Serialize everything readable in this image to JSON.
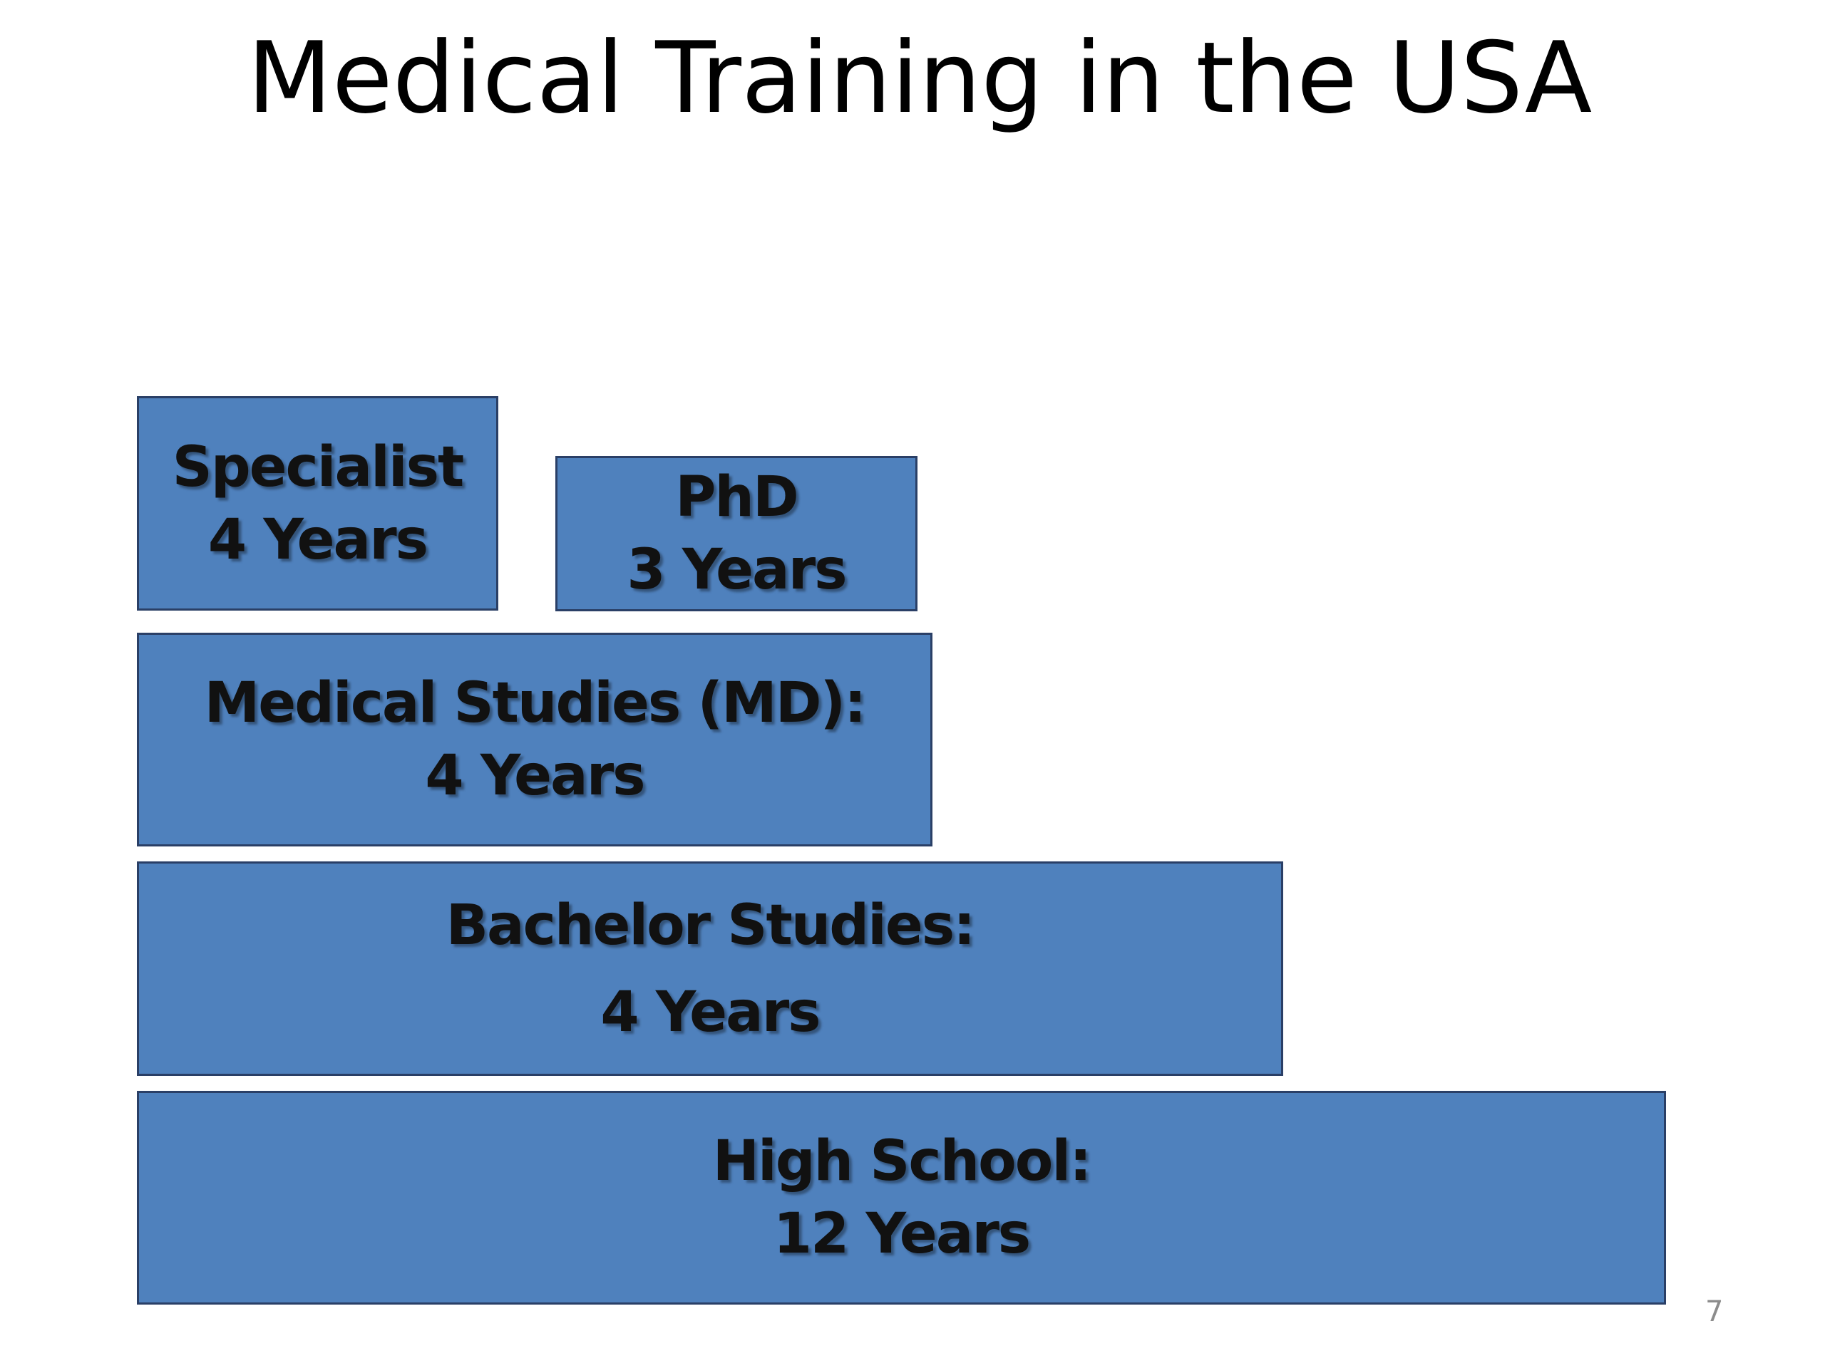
{
  "title": "Medical Training in the USA",
  "boxes": [
    {
      "line1": "Specialist",
      "line2": "4 Years"
    },
    {
      "line1": "PhD",
      "line2": "3 Years"
    },
    {
      "line1": "Medical Studies (MD):",
      "line2": "4 Years"
    },
    {
      "line1": "Bachelor Studies:",
      "line2": "4 Years"
    },
    {
      "line1": "High School:",
      "line2": "12 Years"
    }
  ],
  "page_number": "7"
}
